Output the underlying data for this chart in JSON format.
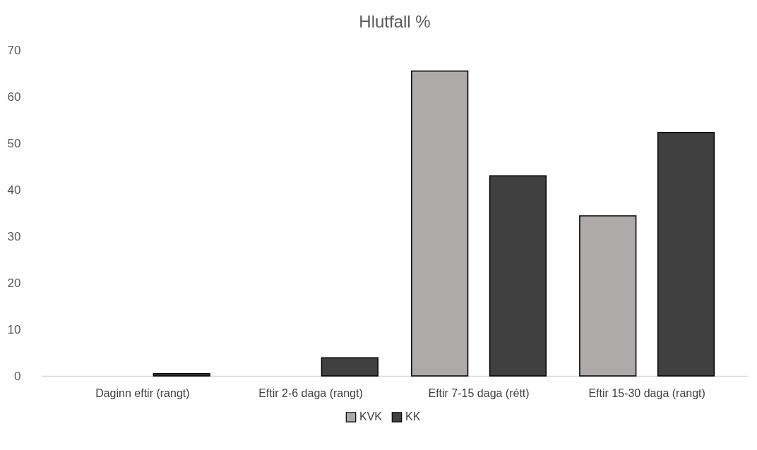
{
  "chart_data": {
    "type": "bar",
    "title": "Hlutfall %",
    "categories": [
      "Daginn eftir (rangt)",
      "Eftir 2-6 daga (rangt)",
      "Eftir 7-15 daga (rétt)",
      "Eftir 15-30 daga (rangt)"
    ],
    "series": [
      {
        "name": "KVK",
        "color": "#aeaaaa",
        "values": [
          0,
          0,
          65.5,
          34.4
        ]
      },
      {
        "name": "KK",
        "color": "#404040",
        "values": [
          0.5,
          3.9,
          43.0,
          52.3
        ]
      }
    ],
    "ylim": [
      0,
      70
    ],
    "yticks": [
      0,
      10,
      20,
      30,
      40,
      50,
      60,
      70
    ],
    "grid": false,
    "legend": "bottom"
  }
}
